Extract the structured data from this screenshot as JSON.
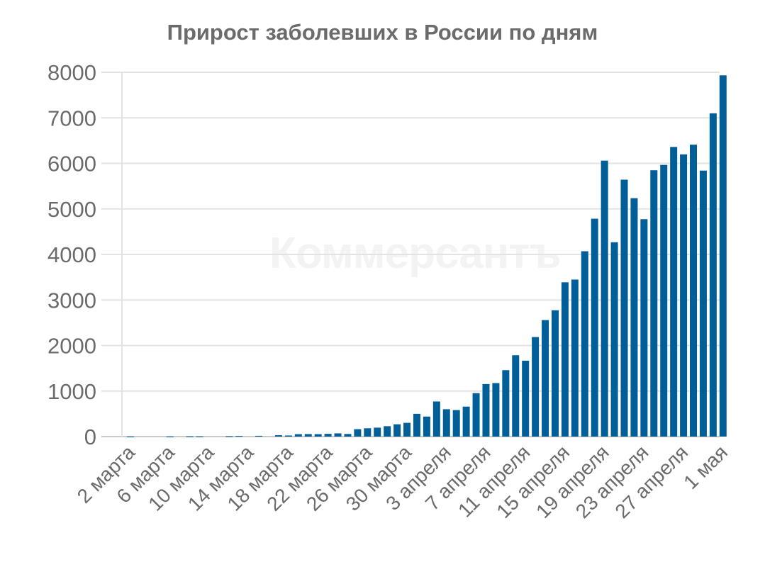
{
  "chart": {
    "title": "Прирост заболевших в России по дням",
    "watermark": "Коммерсантъ",
    "bar_color": "#005f99",
    "grid_color": "#e3e3e3",
    "text_color": "#6b6b6b"
  },
  "chart_data": {
    "type": "bar",
    "title": "Прирост заболевших в России по дням",
    "xlabel": "",
    "ylabel": "",
    "ylim": [
      0,
      8000
    ],
    "yticks": [
      0,
      1000,
      2000,
      3000,
      4000,
      5000,
      6000,
      7000,
      8000
    ],
    "grid": true,
    "legend": null,
    "x_tick_labels": [
      "2 марта",
      "6 марта",
      "10 марта",
      "14 марта",
      "18 марта",
      "22 марта",
      "26 марта",
      "30 марта",
      "3 апреля",
      "7 апреля",
      "11 апреля",
      "15 апреля",
      "19 апреля",
      "23 апреля",
      "27 апреля",
      "1 мая"
    ],
    "categories": [
      "2 марта",
      "3 марта",
      "4 марта",
      "5 марта",
      "6 марта",
      "7 марта",
      "8 марта",
      "9 марта",
      "10 марта",
      "11 марта",
      "12 марта",
      "13 марта",
      "14 марта",
      "15 марта",
      "16 марта",
      "17 марта",
      "18 марта",
      "19 марта",
      "20 марта",
      "21 марта",
      "22 марта",
      "23 марта",
      "24 марта",
      "25 марта",
      "26 марта",
      "27 марта",
      "28 марта",
      "29 марта",
      "30 марта",
      "31 марта",
      "1 апреля",
      "2 апреля",
      "3 апреля",
      "4 апреля",
      "5 апреля",
      "6 апреля",
      "7 апреля",
      "8 апреля",
      "9 апреля",
      "10 апреля",
      "11 апреля",
      "12 апреля",
      "13 апреля",
      "14 апреля",
      "15 апреля",
      "16 апреля",
      "17 апреля",
      "18 апреля",
      "19 апреля",
      "20 апреля",
      "21 апреля",
      "22 апреля",
      "23 апреля",
      "24 апреля",
      "25 апреля",
      "26 апреля",
      "27 апреля",
      "28 апреля",
      "29 апреля",
      "30 апреля",
      "1 мая"
    ],
    "values": [
      1,
      0,
      0,
      0,
      1,
      0,
      4,
      3,
      0,
      0,
      8,
      14,
      0,
      17,
      0,
      30,
      24,
      53,
      55,
      53,
      60,
      71,
      57,
      163,
      182,
      196,
      228,
      270,
      302,
      500,
      440,
      771,
      601,
      582,
      658,
      954,
      1154,
      1175,
      1459,
      1786,
      1667,
      2186,
      2558,
      2774,
      3388,
      3448,
      4070,
      4785,
      6060,
      4268,
      5642,
      5236,
      4774,
      5849,
      5966,
      6361,
      6198,
      6411,
      5841,
      7099,
      7933
    ]
  }
}
